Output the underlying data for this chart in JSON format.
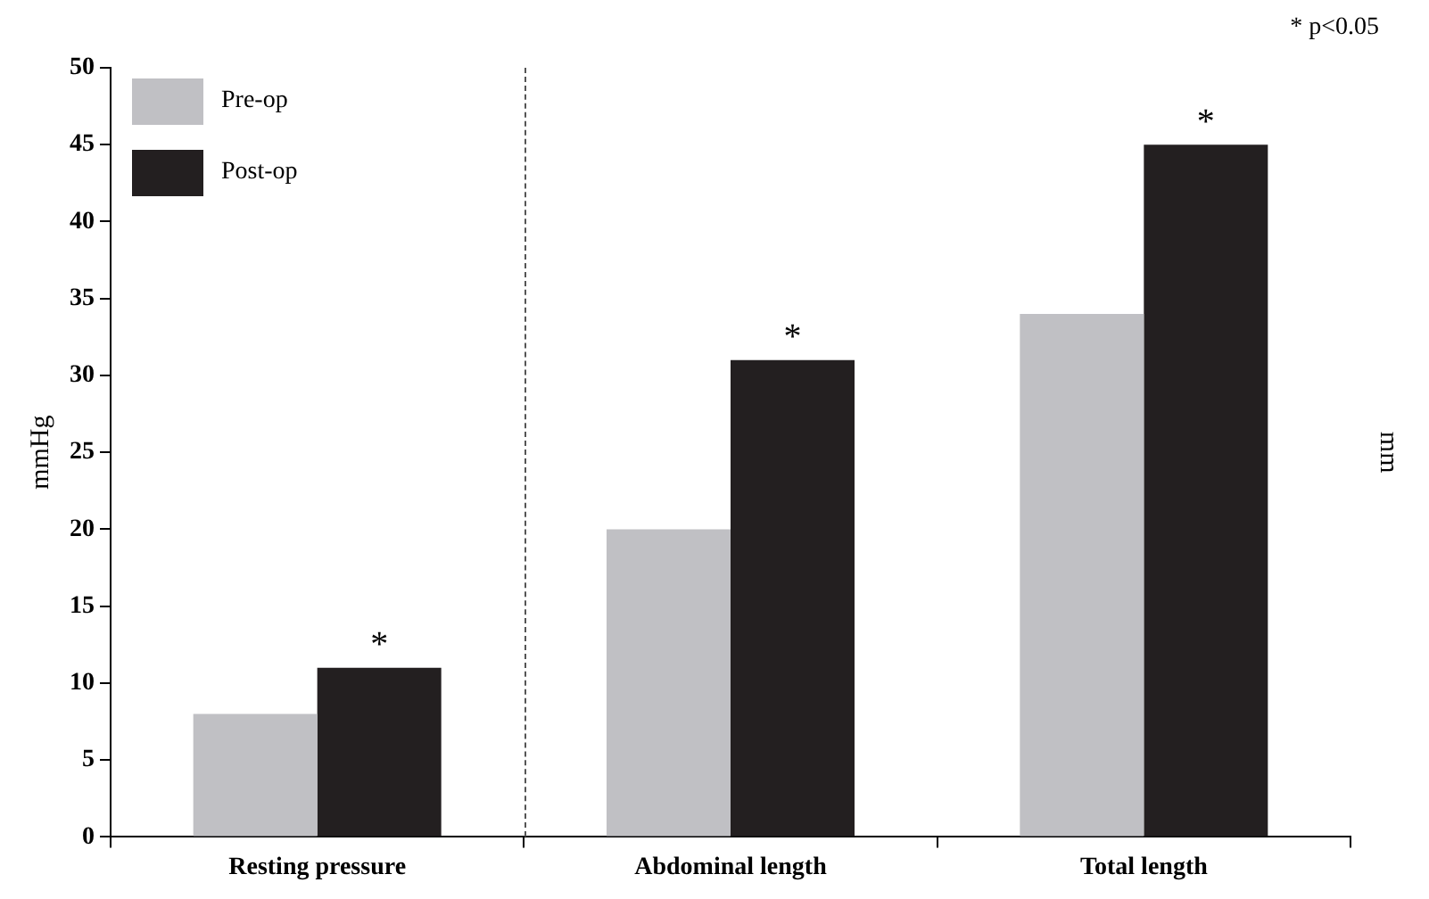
{
  "chart_data": {
    "type": "bar",
    "ylabel": "mmHg",
    "y2label": "mm",
    "categories": [
      "Resting pressure",
      "Abdominal length",
      "Total length"
    ],
    "series": [
      {
        "name": "Pre-op",
        "color": "#c0c0c4",
        "values": [
          8,
          20,
          34
        ]
      },
      {
        "name": "Post-op",
        "color": "#231f20",
        "values": [
          11,
          31,
          45
        ]
      }
    ],
    "ylim": [
      0,
      50
    ],
    "yticks": [
      0,
      5,
      10,
      15,
      20,
      25,
      30,
      35,
      40,
      45,
      50
    ],
    "grid": false,
    "legend": "top left",
    "annotations": [
      {
        "text": "*",
        "x": "Resting pressure",
        "y": 11
      },
      {
        "text": "*",
        "x": "Abdominal length",
        "y": 31
      },
      {
        "text": "*",
        "x": "Total length",
        "y": 45
      },
      "* p<0.05"
    ]
  }
}
